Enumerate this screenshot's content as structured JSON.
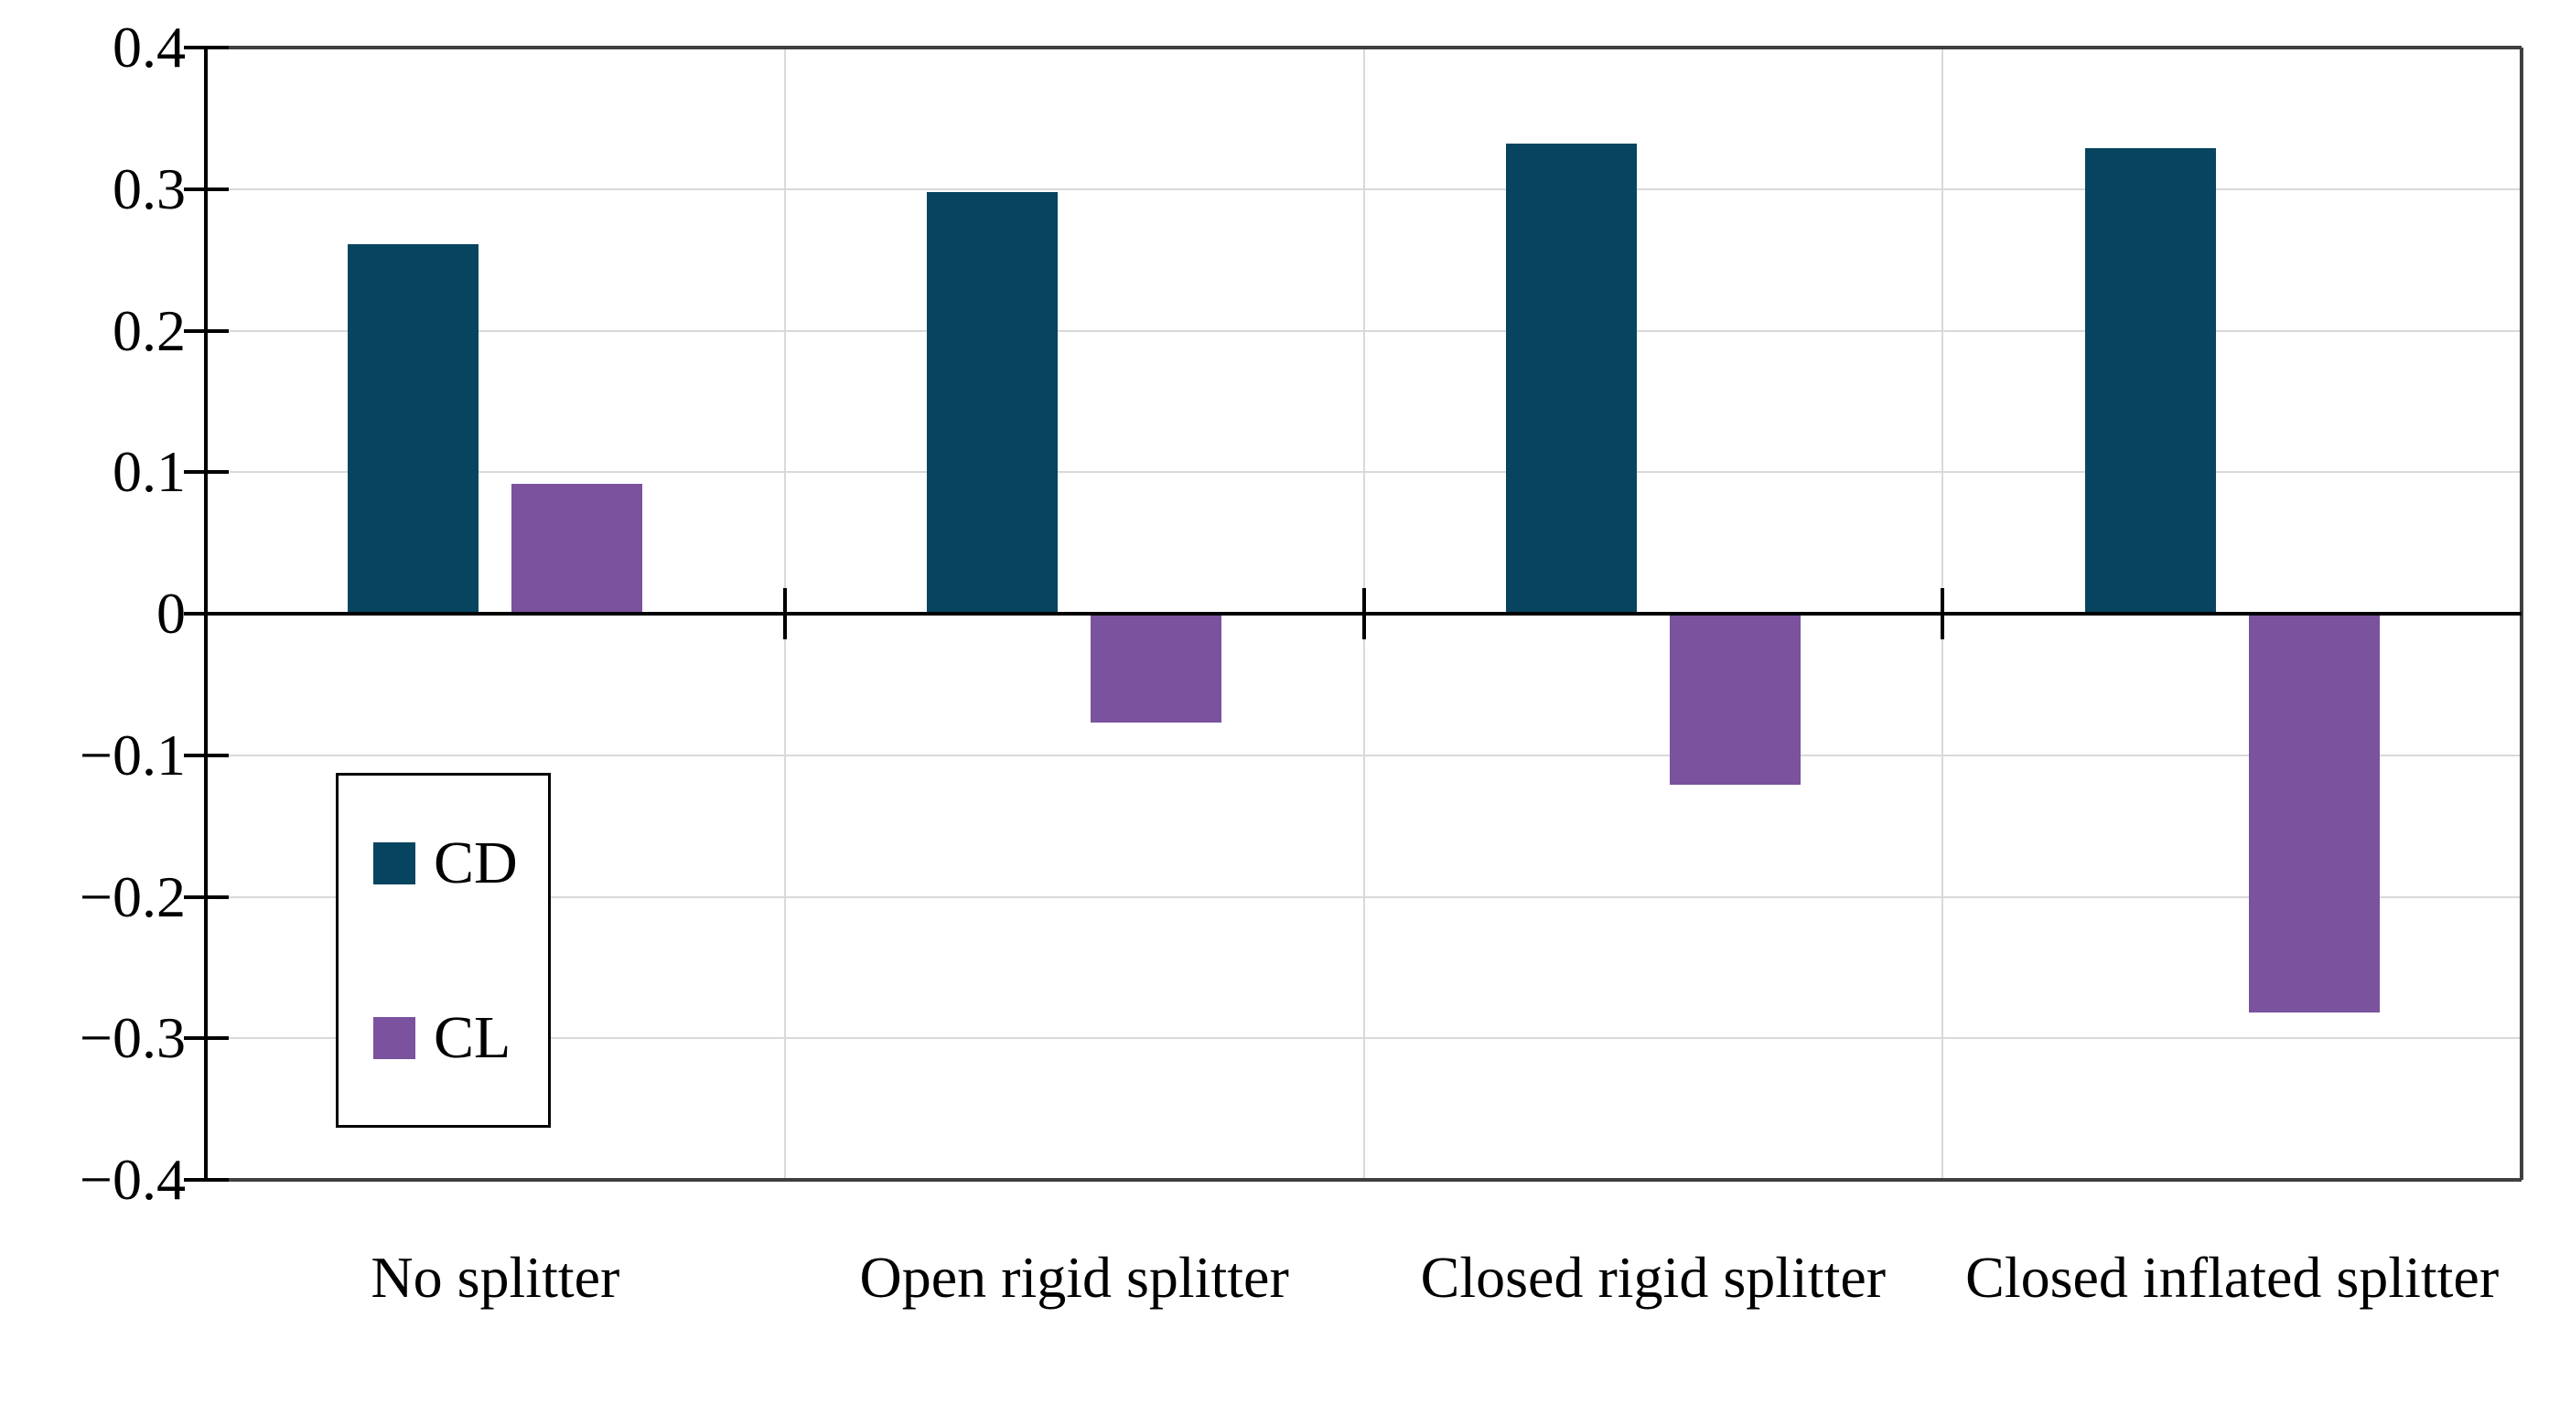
{
  "chart_data": {
    "type": "bar",
    "categories": [
      "No splitter",
      "Open rigid splitter",
      "Closed rigid splitter",
      "Closed inflated splitter"
    ],
    "series": [
      {
        "name": "CD",
        "color": "#07445f",
        "values": [
          0.261,
          0.298,
          0.332,
          0.329
        ]
      },
      {
        "name": "CL",
        "color": "#7a529e",
        "values": [
          0.092,
          -0.077,
          -0.121,
          -0.282
        ]
      }
    ],
    "title": "",
    "xlabel": "",
    "ylabel": "",
    "ylim": [
      -0.4,
      0.4
    ],
    "ytick_step": 0.1,
    "ytick_labels": [
      "0.4",
      "0.3",
      "0.2",
      "0.1",
      "0",
      "−0.1",
      "−0.2",
      "−0.3",
      "−0.4"
    ],
    "grid": true,
    "legend_position": "inside-left",
    "legend_entries": [
      "CD",
      "CL"
    ]
  },
  "colors": {
    "cd_bar": "#07445f",
    "cl_bar": "#7a529e",
    "gridline": "#d9d9d9",
    "plot_border": "#3f3f3f",
    "axis": "#000000",
    "text": "#000000",
    "background": "#ffffff"
  }
}
